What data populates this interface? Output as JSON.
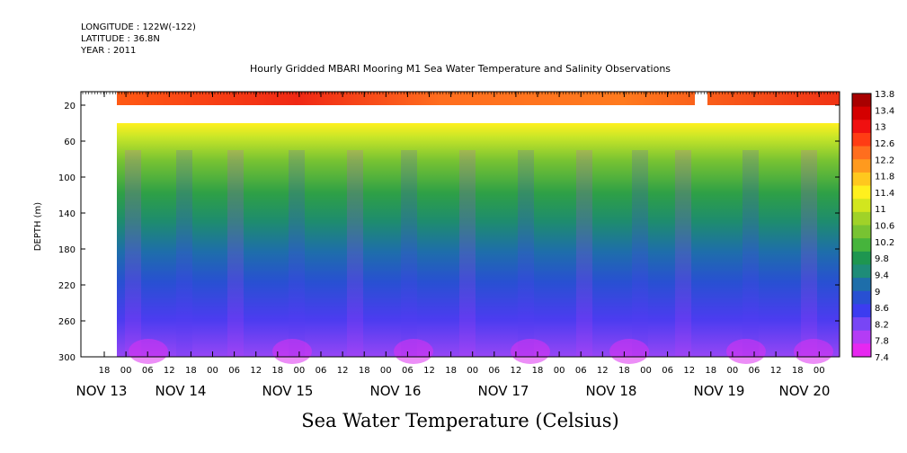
{
  "header": {
    "longitude": "LONGITUDE : 122W(-122)",
    "latitude": "LATITUDE : 36.8N",
    "year": "YEAR : 2011"
  },
  "chart_data": {
    "type": "heatmap",
    "title": "Hourly Gridded MBARI Mooring M1 Sea Water Temperature and Salinity Observations",
    "xlabel": "Sea Water Temperature (Celsius)",
    "ylabel": "DEPTH (m)",
    "yticks": [
      "20",
      "60",
      "100",
      "140",
      "180",
      "220",
      "260",
      "300"
    ],
    "ylim": [
      300,
      5
    ],
    "hour_labels": [
      "18",
      "00",
      "06",
      "12",
      "18",
      "00",
      "06",
      "12",
      "18",
      "00",
      "06",
      "12",
      "18",
      "00",
      "06",
      "12",
      "18",
      "00",
      "06",
      "12",
      "18",
      "00",
      "06",
      "12",
      "18",
      "00",
      "06",
      "12",
      "18",
      "00",
      "06",
      "12",
      "18",
      "00",
      "06",
      "12"
    ],
    "date_labels": [
      "NOV 13",
      "NOV 14",
      "NOV 15",
      "NOV 16",
      "NOV 17",
      "NOV 18",
      "NOV 19",
      "NOV 20"
    ],
    "colorbar_labels": [
      "13.8",
      "13.4",
      "13",
      "12.6",
      "12.2",
      "11.8",
      "11.4",
      "11",
      "10.6",
      "10.2",
      "9.8",
      "9.4",
      "9",
      "8.6",
      "8.2",
      "7.8",
      "7.4"
    ],
    "colorbar_colors": [
      "#a80000",
      "#d40000",
      "#f01010",
      "#ff3c14",
      "#ff6e1e",
      "#ff9a1e",
      "#ffc81e",
      "#fff01e",
      "#d2e61e",
      "#a0d228",
      "#78c332",
      "#46b43c",
      "#1e9650",
      "#1e8c78",
      "#1e6eaa",
      "#2850d2",
      "#3c3cf0",
      "#7846f5",
      "#b43cf5",
      "#e628f0"
    ],
    "surface_temperature_band": {
      "depth": "5-20",
      "approx_value": 12.4,
      "gap": "NOV 19 06"
    },
    "approx_temperature_profile": [
      {
        "depth": 40,
        "value": 11.4
      },
      {
        "depth": 60,
        "value": 10.6
      },
      {
        "depth": 100,
        "value": 9.8
      },
      {
        "depth": 140,
        "value": 9.2
      },
      {
        "depth": 180,
        "value": 8.8
      },
      {
        "depth": 220,
        "value": 8.4
      },
      {
        "depth": 260,
        "value": 8.1
      },
      {
        "depth": 300,
        "value": 7.6
      }
    ]
  }
}
